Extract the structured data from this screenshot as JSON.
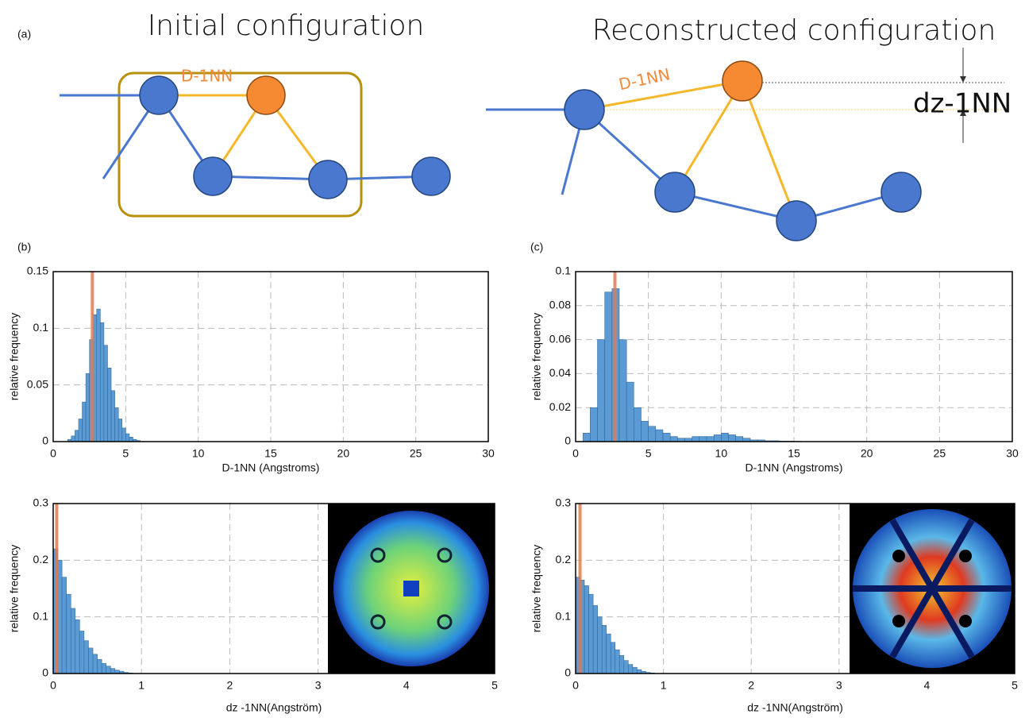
{
  "diagram": {
    "panel_label": "(a)",
    "left_title": "Initial configuration",
    "left_bond": "D-1NN",
    "right_title": "Reconstructed configuration",
    "right_bond": "D-1NN",
    "dz_label": "dz-1NN"
  },
  "chart_data": [
    {
      "type": "histogram",
      "panel_label": "(b)",
      "ylabel": "relative frequency",
      "xlabel": "D-1NN (Angstroms)",
      "bins": [
        1.0,
        1.25,
        1.5,
        1.75,
        2.0,
        2.25,
        2.5,
        2.75,
        3.0,
        3.25,
        3.5,
        3.75,
        4.0,
        4.25,
        4.5,
        4.75,
        5.0,
        5.25,
        5.5,
        5.75,
        6.0
      ],
      "values": [
        0.002,
        0.005,
        0.01,
        0.02,
        0.035,
        0.06,
        0.09,
        0.112,
        0.117,
        0.105,
        0.085,
        0.065,
        0.045,
        0.03,
        0.02,
        0.012,
        0.007,
        0.004,
        0.002,
        0.001
      ],
      "color": "#5b9bd5",
      "vline": 2.7,
      "vline_color": "#e07b54",
      "xlim": [
        0,
        30
      ],
      "ylim": [
        0,
        0.15
      ],
      "xticks": [
        0,
        5,
        10,
        15,
        20,
        25,
        30
      ],
      "yticks": [
        0,
        0.05,
        0.1,
        0.15
      ],
      "grid": true
    },
    {
      "type": "histogram",
      "panel_label": "(c)",
      "ylabel": "relative frequency",
      "xlabel": "D-1NN (Angstroms)",
      "bins": [
        0.5,
        1.0,
        1.5,
        2.0,
        2.5,
        3.0,
        3.5,
        4.0,
        4.5,
        5.0,
        5.5,
        6.0,
        6.5,
        7.0,
        7.5,
        8.0,
        8.5,
        9.0,
        9.5,
        10.0,
        10.5,
        11.0,
        11.5,
        12.0,
        12.5,
        13.0,
        13.5,
        14.0,
        14.5,
        15.0,
        15.5
      ],
      "values": [
        0.005,
        0.02,
        0.06,
        0.088,
        0.09,
        0.06,
        0.035,
        0.02,
        0.012,
        0.009,
        0.007,
        0.005,
        0.003,
        0.002,
        0.002,
        0.003,
        0.003,
        0.003,
        0.004,
        0.005,
        0.004,
        0.003,
        0.002,
        0.001,
        0.001,
        0.0005,
        0.0005,
        0.0003,
        0.0003,
        0.0002
      ],
      "color": "#5b9bd5",
      "vline": 2.7,
      "vline_color": "#e07b54",
      "xlim": [
        0,
        30
      ],
      "ylim": [
        0,
        0.1
      ],
      "xticks": [
        0,
        5,
        10,
        15,
        20,
        25,
        30
      ],
      "yticks": [
        0,
        0.02,
        0.04,
        0.06,
        0.08,
        0.1
      ],
      "grid": true
    },
    {
      "type": "histogram",
      "ylabel": "relative frequency",
      "xlabel": "dz -1NN(Angström)",
      "bins": [
        0,
        0.05,
        0.1,
        0.15,
        0.2,
        0.25,
        0.3,
        0.35,
        0.4,
        0.45,
        0.5,
        0.55,
        0.6,
        0.65,
        0.7,
        0.75,
        0.8,
        0.85,
        0.9
      ],
      "values": [
        0.22,
        0.2,
        0.17,
        0.14,
        0.115,
        0.095,
        0.075,
        0.058,
        0.045,
        0.034,
        0.025,
        0.018,
        0.013,
        0.009,
        0.006,
        0.004,
        0.002,
        0.001
      ],
      "color": "#5b9bd5",
      "vline": 0.04,
      "vline_color": "#e07b54",
      "xlim": [
        0,
        5
      ],
      "ylim": [
        0,
        0.3
      ],
      "xticks": [
        0,
        1,
        2,
        3,
        4,
        5
      ],
      "yticks": [
        0,
        0.1,
        0.2,
        0.3
      ],
      "grid": true
    },
    {
      "type": "histogram",
      "ylabel": "relative frequency",
      "xlabel": "dz -1NN(Angström)",
      "bins": [
        0,
        0.05,
        0.1,
        0.15,
        0.2,
        0.25,
        0.3,
        0.35,
        0.4,
        0.45,
        0.5,
        0.55,
        0.6,
        0.65,
        0.7,
        0.75,
        0.8,
        0.85,
        0.9
      ],
      "values": [
        0.17,
        0.165,
        0.155,
        0.14,
        0.12,
        0.1,
        0.085,
        0.07,
        0.055,
        0.042,
        0.032,
        0.023,
        0.016,
        0.011,
        0.007,
        0.004,
        0.002,
        0.001
      ],
      "color": "#5b9bd5",
      "vline": 0.05,
      "vline_color": "#e07b54",
      "xlim": [
        0,
        5
      ],
      "ylim": [
        0,
        0.3
      ],
      "xticks": [
        0,
        1,
        2,
        3,
        4,
        5
      ],
      "yticks": [
        0,
        0.1,
        0.2,
        0.3
      ],
      "grid": true
    }
  ]
}
